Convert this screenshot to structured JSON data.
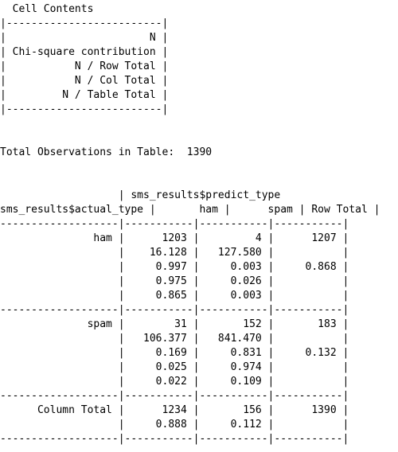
{
  "crosstable": {
    "cell_contents": {
      "title": "  Cell Contents",
      "lines": [
        "|-------------------------|",
        "|                       N |",
        "| Chi-square contribution |",
        "|           N / Row Total |",
        "|           N / Col Total |",
        "|         N / Table Total |",
        "|-------------------------|"
      ]
    },
    "total_observations": "Total Observations in Table:  1390",
    "table_lines": [
      "                   | sms_results$predict_type",
      "sms_results$actual_type |       ham |      spam | Row Total |",
      "-------------------|-----------|-----------|-----------|",
      "               ham |      1203 |         4 |      1207 |",
      "                   |    16.128 |   127.580 |           |",
      "                   |     0.997 |     0.003 |     0.868 |",
      "                   |     0.975 |     0.026 |           |",
      "                   |     0.865 |     0.003 |           |",
      "-------------------|-----------|-----------|-----------|",
      "              spam |        31 |       152 |       183 |",
      "                   |   106.377 |   841.470 |           |",
      "                   |     0.169 |     0.831 |     0.132 |",
      "                   |     0.025 |     0.974 |           |",
      "                   |     0.022 |     0.109 |           |",
      "-------------------|-----------|-----------|-----------|",
      "      Column Total |      1234 |       156 |      1390 |",
      "                   |     0.888 |     0.112 |           |",
      "-------------------|-----------|-----------|-----------|"
    ]
  }
}
